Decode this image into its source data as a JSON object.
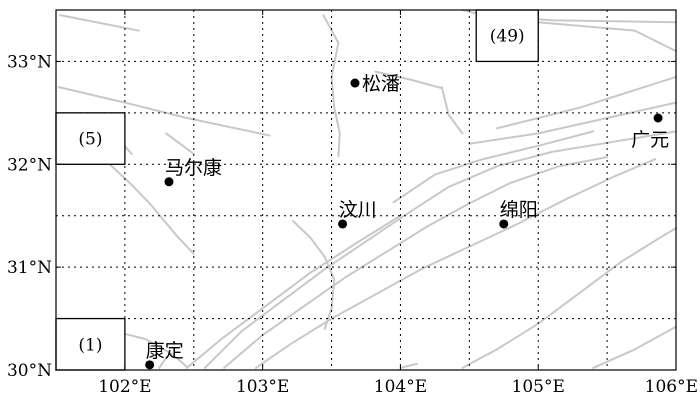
{
  "map": {
    "lon_range": [
      101.5,
      106.0
    ],
    "lat_range": [
      30.0,
      33.5
    ],
    "lon_ticks": [
      {
        "value": 102,
        "label": "102°E"
      },
      {
        "value": 103,
        "label": "103°E"
      },
      {
        "value": 104,
        "label": "104°E"
      },
      {
        "value": 105,
        "label": "105°E"
      },
      {
        "value": 106,
        "label": "106°E"
      }
    ],
    "lat_ticks": [
      {
        "value": 30,
        "label": "30°N"
      },
      {
        "value": 31,
        "label": "31°N"
      },
      {
        "value": 32,
        "label": "32°N"
      },
      {
        "value": 33,
        "label": "33°N"
      }
    ],
    "colors": {
      "fault": "#c8c8c8",
      "grid": "#000000",
      "frame": "#000000",
      "city": "#000000"
    }
  },
  "cities": [
    {
      "name": "松潘",
      "lon": 103.67,
      "lat": 32.79,
      "label_side": "right"
    },
    {
      "name": "马尔康",
      "lon": 102.32,
      "lat": 31.83,
      "label_side": "above"
    },
    {
      "name": "汶川",
      "lon": 103.58,
      "lat": 31.42,
      "label_side": "above"
    },
    {
      "name": "绵阳",
      "lon": 104.75,
      "lat": 31.42,
      "label_side": "above"
    },
    {
      "name": "广元",
      "lon": 105.87,
      "lat": 32.45,
      "label_side": "below"
    },
    {
      "name": "康定",
      "lon": 102.18,
      "lat": 30.05,
      "label_side": "above"
    }
  ],
  "zones": [
    {
      "label": "(49)",
      "lon": [
        104.55,
        105.0
      ],
      "lat": [
        33.0,
        33.5
      ]
    },
    {
      "label": "(5)",
      "lon": [
        101.5,
        102.0
      ],
      "lat": [
        32.0,
        32.5
      ]
    },
    {
      "label": "(1)",
      "lon": [
        101.5,
        102.0
      ],
      "lat": [
        30.0,
        30.5
      ]
    }
  ],
  "faults": [
    [
      [
        101.53,
        33.45
      ],
      [
        102.1,
        33.3
      ]
    ],
    [
      [
        101.52,
        32.75
      ],
      [
        102.0,
        32.6
      ],
      [
        102.45,
        32.45
      ],
      [
        103.05,
        32.28
      ]
    ],
    [
      [
        101.85,
        32.05
      ],
      [
        102.05,
        31.8
      ],
      [
        102.18,
        31.62
      ],
      [
        102.38,
        31.3
      ],
      [
        102.5,
        31.13
      ]
    ],
    [
      [
        101.95,
        32.25
      ],
      [
        102.05,
        32.1
      ]
    ],
    [
      [
        102.3,
        32.3
      ],
      [
        102.5,
        32.1
      ]
    ],
    [
      [
        103.44,
        33.45
      ],
      [
        103.55,
        33.18
      ],
      [
        103.5,
        32.85
      ],
      [
        103.52,
        32.55
      ],
      [
        103.56,
        32.3
      ],
      [
        103.55,
        32.08
      ]
    ],
    [
      [
        103.82,
        32.9
      ],
      [
        104.08,
        32.82
      ],
      [
        104.3,
        32.74
      ]
    ],
    [
      [
        104.3,
        32.75
      ],
      [
        104.35,
        32.48
      ],
      [
        104.45,
        32.3
      ]
    ],
    [
      [
        104.45,
        33.5
      ],
      [
        104.6,
        33.45
      ],
      [
        105.1,
        33.4
      ],
      [
        106.0,
        33.38
      ]
    ],
    [
      [
        105.0,
        33.38
      ],
      [
        105.7,
        33.3
      ],
      [
        106.0,
        33.1
      ]
    ],
    [
      [
        104.5,
        32.2
      ],
      [
        105.0,
        32.3
      ],
      [
        105.5,
        32.45
      ],
      [
        106.0,
        32.6
      ]
    ],
    [
      [
        104.7,
        32.35
      ],
      [
        105.3,
        32.55
      ],
      [
        106.0,
        32.85
      ]
    ],
    [
      [
        103.95,
        31.63
      ],
      [
        104.25,
        31.9
      ],
      [
        104.6,
        32.05
      ],
      [
        105.0,
        32.18
      ],
      [
        105.4,
        32.32
      ]
    ],
    [
      [
        103.22,
        31.45
      ],
      [
        103.35,
        31.28
      ],
      [
        103.45,
        31.1
      ],
      [
        103.52,
        30.88
      ],
      [
        103.5,
        30.6
      ],
      [
        103.45,
        30.4
      ]
    ],
    [
      [
        102.58,
        30.02
      ],
      [
        102.85,
        30.38
      ],
      [
        103.15,
        30.68
      ],
      [
        103.45,
        30.98
      ],
      [
        103.75,
        31.25
      ],
      [
        104.05,
        31.52
      ],
      [
        104.35,
        31.78
      ],
      [
        104.7,
        31.98
      ],
      [
        105.1,
        32.12
      ],
      [
        105.55,
        32.22
      ],
      [
        106.0,
        32.32
      ]
    ],
    [
      [
        102.72,
        30.02
      ],
      [
        103.0,
        30.34
      ],
      [
        103.3,
        30.62
      ],
      [
        103.6,
        30.9
      ],
      [
        103.9,
        31.15
      ],
      [
        104.2,
        31.4
      ],
      [
        104.5,
        31.62
      ],
      [
        104.8,
        31.82
      ],
      [
        105.15,
        31.98
      ],
      [
        105.5,
        32.07
      ]
    ],
    [
      [
        102.45,
        30.02
      ],
      [
        102.7,
        30.3
      ],
      [
        103.0,
        30.6
      ],
      [
        103.35,
        30.95
      ],
      [
        103.7,
        31.25
      ],
      [
        104.0,
        31.5
      ]
    ],
    [
      [
        102.95,
        30.02
      ],
      [
        103.2,
        30.25
      ],
      [
        103.5,
        30.5
      ],
      [
        103.8,
        30.72
      ],
      [
        104.15,
        30.98
      ],
      [
        104.5,
        31.2
      ],
      [
        104.85,
        31.42
      ],
      [
        105.2,
        31.66
      ],
      [
        105.55,
        31.88
      ],
      [
        105.85,
        32.05
      ]
    ],
    [
      [
        104.45,
        30.02
      ],
      [
        104.7,
        30.2
      ],
      [
        105.0,
        30.45
      ],
      [
        105.3,
        30.75
      ],
      [
        105.6,
        31.05
      ],
      [
        105.9,
        31.3
      ],
      [
        106.0,
        31.38
      ]
    ],
    [
      [
        105.4,
        30.02
      ],
      [
        105.7,
        30.2
      ],
      [
        106.0,
        30.42
      ]
    ],
    [
      [
        104.0,
        30.02
      ],
      [
        104.12,
        30.06
      ]
    ],
    [
      [
        101.5,
        30.48
      ],
      [
        101.8,
        30.42
      ],
      [
        102.15,
        30.3
      ],
      [
        102.35,
        30.15
      ],
      [
        102.45,
        30.03
      ]
    ],
    [
      [
        101.5,
        30.38
      ],
      [
        101.75,
        30.33
      ],
      [
        101.85,
        30.15
      ],
      [
        101.88,
        30.02
      ]
    ],
    [
      [
        102.25,
        30.02
      ],
      [
        102.3,
        30.12
      ]
    ]
  ]
}
